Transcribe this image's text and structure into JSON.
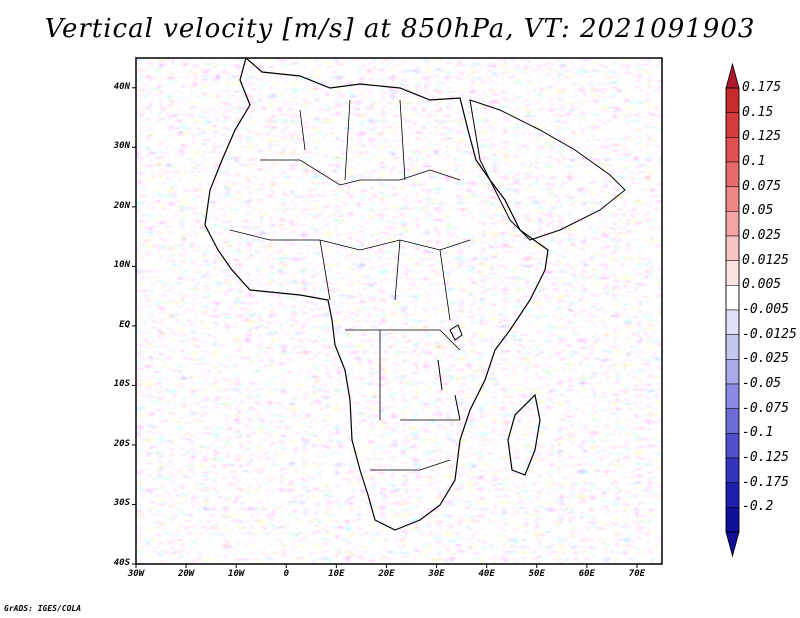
{
  "title": "Vertical velocity [m/s] at 850hPa, VT: 2021091903",
  "footer": "GrADS: IGES/COLA",
  "map": {
    "lon_range": [
      -30,
      75
    ],
    "lat_range": [
      -40,
      45
    ],
    "lat_ticks": [
      {
        "value": 40,
        "label": "40N"
      },
      {
        "value": 30,
        "label": "30N"
      },
      {
        "value": 20,
        "label": "20N"
      },
      {
        "value": 10,
        "label": "10N"
      },
      {
        "value": 0,
        "label": "EQ"
      },
      {
        "value": -10,
        "label": "10S"
      },
      {
        "value": -20,
        "label": "20S"
      },
      {
        "value": -30,
        "label": "30S"
      },
      {
        "value": -40,
        "label": "40S"
      }
    ],
    "lon_ticks": [
      {
        "value": -30,
        "label": "30W"
      },
      {
        "value": -20,
        "label": "20W"
      },
      {
        "value": -10,
        "label": "10W"
      },
      {
        "value": 0,
        "label": "0"
      },
      {
        "value": 10,
        "label": "10E"
      },
      {
        "value": 20,
        "label": "20E"
      },
      {
        "value": 30,
        "label": "30E"
      },
      {
        "value": 40,
        "label": "40E"
      },
      {
        "value": 50,
        "label": "50E"
      },
      {
        "value": 60,
        "label": "60E"
      },
      {
        "value": 70,
        "label": "70E"
      }
    ]
  },
  "colorbar": {
    "levels": [
      "0.175",
      "0.15",
      "0.125",
      "0.1",
      "0.075",
      "0.05",
      "0.025",
      "0.0125",
      "0.005",
      "-0.005",
      "-0.0125",
      "-0.025",
      "-0.05",
      "-0.075",
      "-0.1",
      "-0.125",
      "-0.175",
      "-0.2"
    ],
    "colors": [
      "#b2182b",
      "#c62a2a",
      "#d63c3c",
      "#e05050",
      "#e96a6a",
      "#f08686",
      "#f5a3a3",
      "#f9c4c4",
      "#fce2e2",
      "#ffffff",
      "#e0e0f8",
      "#c6c6f2",
      "#a9a9ec",
      "#8b8be3",
      "#6d6dd9",
      "#5050cc",
      "#3434bd",
      "#1f1fae",
      "#10109a"
    ]
  }
}
